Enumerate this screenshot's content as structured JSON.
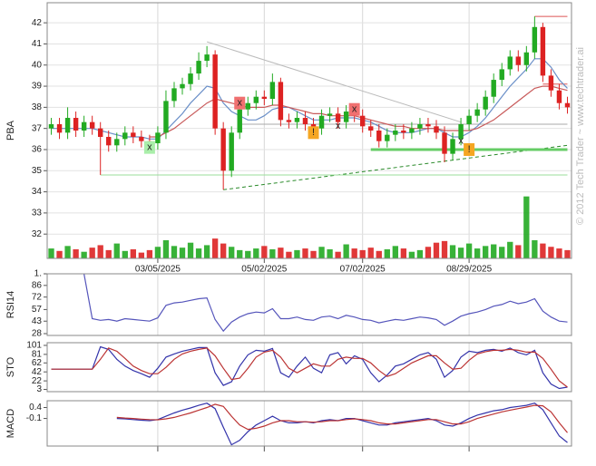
{
  "watermark": "© 2012 Tech Trader ~ www.techtrader.ai",
  "chart_data": [
    {
      "type": "candlestick",
      "ylabel": "PBA",
      "categories": [
        null,
        null,
        null,
        null,
        null,
        null,
        null,
        null,
        null,
        null,
        null,
        null,
        null,
        "03/05/2025",
        null,
        null,
        null,
        null,
        null,
        null,
        null,
        null,
        null,
        null,
        null,
        null,
        "05/02/2025",
        null,
        null,
        null,
        null,
        null,
        null,
        null,
        null,
        null,
        null,
        null,
        "07/02/2025",
        null,
        null,
        null,
        null,
        null,
        null,
        null,
        null,
        null,
        null,
        null,
        null,
        "08/29/2025",
        null,
        null,
        null,
        null,
        null,
        null,
        null,
        null,
        null,
        null,
        null,
        null
      ],
      "open": [
        37.0,
        37.2,
        36.8,
        37.5,
        36.9,
        37.3,
        37.0,
        36.6,
        36.2,
        36.5,
        36.8,
        36.6,
        36.4,
        36.3,
        36.8,
        38.3,
        38.9,
        39.1,
        39.6,
        40.2,
        40.5,
        37.0,
        35.0,
        36.8,
        37.9,
        38.2,
        38.5,
        38.4,
        39.2,
        37.4,
        37.3,
        37.5,
        37.2,
        37.0,
        37.6,
        37.7,
        37.3,
        37.8,
        37.6,
        37.1,
        36.9,
        36.4,
        36.7,
        36.9,
        36.8,
        37.0,
        37.2,
        37.1,
        36.8,
        35.8,
        36.5,
        37.2,
        37.6,
        37.9,
        38.5,
        39.3,
        39.8,
        40.4,
        40.0,
        40.6,
        41.8,
        39.5,
        38.8,
        38.2
      ],
      "high": [
        37.5,
        37.5,
        38.0,
        37.8,
        37.6,
        37.6,
        37.3,
        36.9,
        36.8,
        37.1,
        37.1,
        36.9,
        36.7,
        37.1,
        38.8,
        39.2,
        39.4,
        39.9,
        40.6,
        40.9,
        40.7,
        37.3,
        37.1,
        38.2,
        38.5,
        38.8,
        38.8,
        39.6,
        39.4,
        37.7,
        37.8,
        37.8,
        37.5,
        37.9,
        38.0,
        38.0,
        38.1,
        38.1,
        37.9,
        37.4,
        37.2,
        37.0,
        37.2,
        37.2,
        37.3,
        37.5,
        37.5,
        37.4,
        37.1,
        36.8,
        37.5,
        37.9,
        38.2,
        38.8,
        39.6,
        40.1,
        40.7,
        40.7,
        40.9,
        42.3,
        42.0,
        39.8,
        39.1,
        38.5
      ],
      "low": [
        36.7,
        36.5,
        36.5,
        36.6,
        36.6,
        36.7,
        34.8,
        35.9,
        35.9,
        36.2,
        36.3,
        36.1,
        36.0,
        36.0,
        36.5,
        38.0,
        38.6,
        38.8,
        39.3,
        39.9,
        36.7,
        34.1,
        34.7,
        36.5,
        37.6,
        37.9,
        38.1,
        38.1,
        37.1,
        37.0,
        37.0,
        36.9,
        36.7,
        36.7,
        37.3,
        37.0,
        37.0,
        37.3,
        36.8,
        36.6,
        36.1,
        36.1,
        36.4,
        36.5,
        36.5,
        36.7,
        36.8,
        36.5,
        35.4,
        35.5,
        36.2,
        36.9,
        37.3,
        37.6,
        38.2,
        39.0,
        39.5,
        39.7,
        39.7,
        40.3,
        39.2,
        38.5,
        37.9,
        37.7
      ],
      "close": [
        37.2,
        36.8,
        37.5,
        36.9,
        37.3,
        37.0,
        36.6,
        36.2,
        36.5,
        36.8,
        36.6,
        36.4,
        36.3,
        36.8,
        38.3,
        38.9,
        39.1,
        39.6,
        40.2,
        40.5,
        37.0,
        35.0,
        36.8,
        37.9,
        38.2,
        38.5,
        38.4,
        39.2,
        37.4,
        37.3,
        37.5,
        37.2,
        37.0,
        37.6,
        37.7,
        37.3,
        37.8,
        37.6,
        37.1,
        36.9,
        36.4,
        36.7,
        36.9,
        36.8,
        37.0,
        37.2,
        37.1,
        36.8,
        35.8,
        36.5,
        37.2,
        37.6,
        37.9,
        38.5,
        39.3,
        39.8,
        40.4,
        40.0,
        40.6,
        41.8,
        39.5,
        38.8,
        38.2,
        38.0
      ],
      "volume": [
        1.2,
        0.9,
        1.5,
        1.1,
        0.8,
        1.3,
        1.6,
        1.0,
        1.8,
        0.9,
        1.1,
        0.7,
        1.0,
        1.4,
        2.2,
        1.5,
        1.3,
        1.9,
        1.2,
        1.6,
        2.4,
        1.8,
        1.4,
        1.0,
        0.9,
        1.2,
        1.5,
        1.1,
        1.3,
        0.8,
        1.0,
        1.2,
        0.9,
        1.4,
        1.1,
        0.8,
        1.7,
        1.2,
        1.0,
        1.3,
        0.9,
        1.1,
        1.5,
        1.2,
        0.8,
        1.0,
        1.4,
        1.9,
        2.1,
        1.6,
        1.3,
        1.8,
        1.2,
        1.5,
        1.7,
        1.4,
        2.0,
        1.6,
        7.5,
        2.2,
        1.8,
        1.4,
        1.2,
        1.0
      ],
      "vlim": [
        0,
        9
      ],
      "up_color": "#22aa22",
      "down_color": "#dd2222",
      "series": [
        {
          "color": "#6a8fc8",
          "values": [
            37.0,
            37.0,
            37.0,
            37.0,
            37.0,
            37.0,
            36.9,
            36.8,
            36.7,
            36.6,
            36.6,
            36.6,
            36.5,
            36.5,
            36.9,
            37.3,
            37.7,
            38.2,
            38.6,
            39.0,
            38.9,
            38.2,
            37.8,
            37.6,
            37.4,
            37.4,
            37.6,
            37.9,
            38.0,
            38.0,
            37.8,
            37.6,
            37.4,
            37.4,
            37.4,
            37.5,
            37.5,
            37.5,
            37.4,
            37.3,
            37.1,
            36.9,
            36.8,
            36.8,
            36.8,
            36.9,
            37.0,
            37.0,
            36.8,
            36.6,
            36.6,
            36.8,
            37.1,
            37.5,
            38.0,
            38.5,
            39.0,
            39.4,
            39.8,
            40.3,
            40.3,
            39.9,
            39.3,
            38.9
          ]
        },
        {
          "color": "#c85a5a",
          "values": [
            null,
            null,
            null,
            null,
            null,
            null,
            null,
            null,
            null,
            null,
            null,
            null,
            36.6,
            36.6,
            36.8,
            37.0,
            37.3,
            37.6,
            37.9,
            38.2,
            38.4,
            38.3,
            38.2,
            38.1,
            38.0,
            38.0,
            38.0,
            38.1,
            38.1,
            38.0,
            37.9,
            37.8,
            37.7,
            37.7,
            37.6,
            37.6,
            37.6,
            37.6,
            37.5,
            37.4,
            37.3,
            37.2,
            37.1,
            37.1,
            37.0,
            37.0,
            37.0,
            37.0,
            36.9,
            36.9,
            36.9,
            36.9,
            37.0,
            37.2,
            37.4,
            37.7,
            38.0,
            38.3,
            38.6,
            38.9,
            39.0,
            39.0,
            38.9,
            38.8
          ]
        }
      ],
      "trendlines": [
        {
          "x": [
            19,
            50
          ],
          "y": [
            41.1,
            37.3
          ],
          "color": "#bbbbbb",
          "dash": false,
          "width": 1
        },
        {
          "x": [
            21,
            63
          ],
          "y": [
            34.1,
            36.2
          ],
          "color": "#2a8a2a",
          "dash": true,
          "width": 1
        },
        {
          "x": [
            6,
            63
          ],
          "y": [
            34.8,
            34.8
          ],
          "color": "#99dd99",
          "dash": false,
          "width": 1
        },
        {
          "x": [
            39,
            63
          ],
          "y": [
            36.0,
            36.0
          ],
          "color": "#66cc66",
          "dash": false,
          "width": 3
        },
        {
          "x": [
            23,
            63
          ],
          "y": [
            37.2,
            37.2
          ],
          "color": "#aaaaaa",
          "dash": false,
          "width": 1
        },
        {
          "x": [
            59,
            63
          ],
          "y": [
            42.3,
            42.3
          ],
          "color": "#dd5555",
          "dash": false,
          "width": 1
        },
        {
          "x": [
            60,
            63
          ],
          "y": [
            39.1,
            39.1
          ],
          "color": "#dd5555",
          "dash": false,
          "width": 1
        }
      ],
      "markers": [
        {
          "x": 12,
          "y": 36.1,
          "label": "x",
          "color": "#aaeeaa"
        },
        {
          "x": 23,
          "y": 38.2,
          "label": "x",
          "color": "#f07070"
        },
        {
          "x": 32,
          "y": 36.8,
          "label": "!",
          "color": "#f5a623"
        },
        {
          "x": 35,
          "y": 37.1,
          "label": "x",
          "color": null
        },
        {
          "x": 37,
          "y": 37.9,
          "label": "x",
          "color": "#f07070"
        },
        {
          "x": 50,
          "y": 36.4,
          "label": "x",
          "color": null
        },
        {
          "x": 51,
          "y": 36.0,
          "label": "!",
          "color": "#f5a623"
        }
      ],
      "ylim": [
        30.85,
        42.95
      ],
      "yticks": [
        32,
        33,
        34,
        35,
        36,
        37,
        38,
        39,
        40,
        41,
        42
      ],
      "grid": true
    },
    {
      "type": "line",
      "ylabel": "RSI14",
      "series": [
        {
          "color": "#5555bb",
          "values": [
            null,
            null,
            null,
            null,
            100,
            46,
            44,
            45,
            43,
            46,
            45,
            44,
            43,
            47,
            62,
            65,
            66,
            68,
            70,
            71,
            45,
            31,
            42,
            48,
            52,
            54,
            53,
            58,
            46,
            46,
            48,
            45,
            44,
            48,
            49,
            46,
            50,
            48,
            45,
            44,
            41,
            43,
            45,
            44,
            46,
            48,
            47,
            45,
            38,
            43,
            49,
            52,
            54,
            57,
            61,
            63,
            67,
            64,
            66,
            70,
            55,
            48,
            43,
            42
          ]
        }
      ],
      "ylim": [
        25.8,
        100
      ],
      "yticks": [
        {
          "value": 100,
          "label": "1."
        },
        86,
        72,
        57,
        43,
        28
      ]
    },
    {
      "type": "line",
      "ylabel": "STO",
      "series": [
        {
          "color": "#3333aa",
          "values": [
            48,
            48,
            48,
            48,
            48,
            48,
            98,
            92,
            70,
            55,
            45,
            38,
            30,
            50,
            75,
            82,
            88,
            92,
            96,
            96,
            40,
            12,
            20,
            55,
            80,
            90,
            88,
            94,
            40,
            30,
            55,
            75,
            50,
            40,
            80,
            85,
            60,
            78,
            70,
            40,
            20,
            35,
            55,
            60,
            70,
            80,
            85,
            70,
            30,
            45,
            75,
            88,
            85,
            90,
            92,
            88,
            95,
            85,
            80,
            90,
            40,
            15,
            5,
            8
          ]
        },
        {
          "color": "#bb3333",
          "values": [
            48,
            48,
            48,
            48,
            48,
            48,
            70,
            95,
            88,
            72,
            55,
            45,
            38,
            38,
            52,
            70,
            82,
            88,
            92,
            95,
            78,
            50,
            25,
            28,
            50,
            75,
            86,
            90,
            75,
            50,
            40,
            50,
            60,
            55,
            55,
            70,
            75,
            72,
            72,
            62,
            45,
            32,
            38,
            50,
            62,
            70,
            78,
            78,
            62,
            48,
            50,
            68,
            82,
            87,
            90,
            90,
            92,
            90,
            86,
            86,
            72,
            48,
            22,
            8
          ]
        }
      ],
      "ylim": [
        -2,
        107
      ],
      "yticks": [
        101,
        81,
        62,
        42,
        22,
        3
      ]
    },
    {
      "type": "line",
      "ylabel": "MACD",
      "series": [
        {
          "color": "#3333aa",
          "values": [
            null,
            null,
            null,
            null,
            null,
            null,
            null,
            null,
            -0.1,
            -0.12,
            -0.15,
            -0.18,
            -0.2,
            -0.15,
            0.0,
            0.15,
            0.28,
            0.38,
            0.5,
            0.6,
            0.35,
            -0.5,
            -1.3,
            -1.1,
            -0.7,
            -0.4,
            -0.2,
            0.0,
            -0.2,
            -0.3,
            -0.3,
            -0.25,
            -0.3,
            -0.2,
            -0.15,
            -0.2,
            -0.1,
            -0.1,
            -0.2,
            -0.3,
            -0.4,
            -0.4,
            -0.3,
            -0.25,
            -0.2,
            -0.15,
            -0.1,
            -0.2,
            -0.4,
            -0.45,
            -0.3,
            -0.1,
            0.05,
            0.15,
            0.25,
            0.3,
            0.4,
            0.45,
            0.5,
            0.6,
            0.3,
            -0.3,
            -0.9,
            -1.2
          ]
        },
        {
          "color": "#bb3333",
          "values": [
            null,
            null,
            null,
            null,
            null,
            null,
            null,
            null,
            -0.05,
            -0.08,
            -0.1,
            -0.13,
            -0.15,
            -0.16,
            -0.12,
            -0.05,
            0.05,
            0.15,
            0.28,
            0.4,
            0.55,
            0.45,
            0.0,
            -0.4,
            -0.6,
            -0.55,
            -0.45,
            -0.3,
            -0.2,
            -0.2,
            -0.25,
            -0.25,
            -0.27,
            -0.25,
            -0.2,
            -0.2,
            -0.15,
            -0.12,
            -0.15,
            -0.2,
            -0.3,
            -0.35,
            -0.35,
            -0.3,
            -0.25,
            -0.2,
            -0.15,
            -0.15,
            -0.25,
            -0.35,
            -0.35,
            -0.25,
            -0.1,
            0.0,
            0.1,
            0.2,
            0.28,
            0.35,
            0.42,
            0.5,
            0.48,
            0.2,
            -0.3,
            -0.75
          ]
        }
      ],
      "ylim": [
        -1.36,
        0.71
      ],
      "yticks": [
        0.4,
        -0.1
      ]
    }
  ]
}
